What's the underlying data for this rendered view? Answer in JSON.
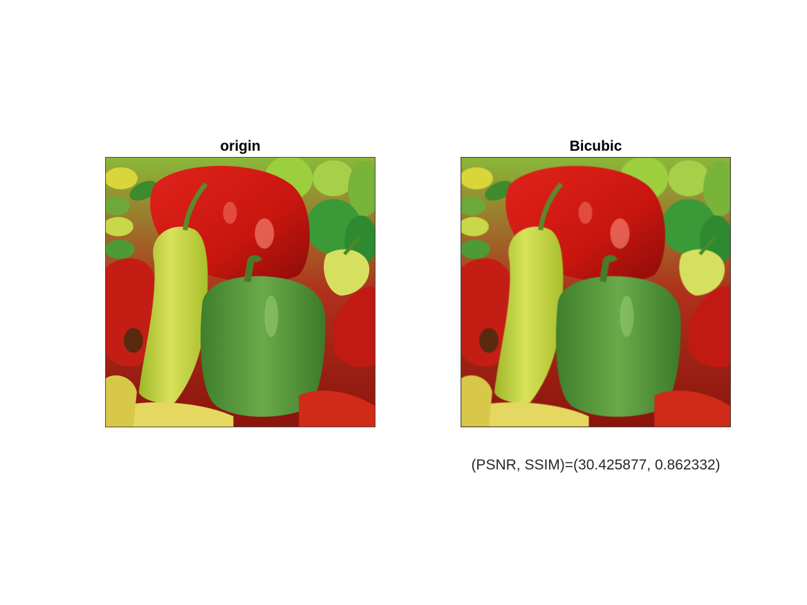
{
  "panels": [
    {
      "title": "origin"
    },
    {
      "title": "Bicubic"
    }
  ],
  "metric_text": "(PSNR, SSIM)=(30.425877, 0.862332)"
}
